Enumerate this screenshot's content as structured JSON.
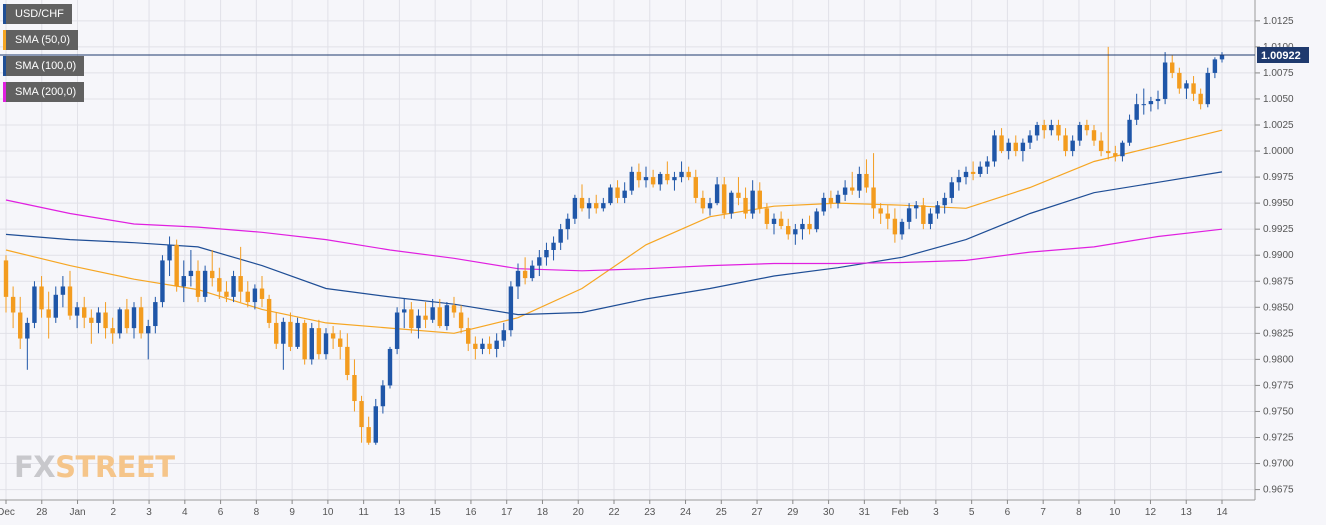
{
  "legend": [
    {
      "label": "USD/CHF",
      "color": "#1f4e96"
    },
    {
      "label": "SMA (50,0)",
      "color": "#f6a623"
    },
    {
      "label": "SMA (100,0)",
      "color": "#1f4e96"
    },
    {
      "label": "SMA (200,0)",
      "color": "#e020e0"
    }
  ],
  "logo": {
    "part1": "FX",
    "part2": "STREET"
  },
  "price_tag": "1.00922",
  "colors": {
    "up": "#1f56a8",
    "down": "#f39c1f",
    "sma50": "#f6a623",
    "sma100": "#1f4e96",
    "sma200": "#e020e0",
    "last_line": "#1f3a6e",
    "grid": "#e1e1e8"
  },
  "chart_data": {
    "type": "candlestick",
    "instrument": "USD/CHF",
    "x_tick_labels": [
      "Dec",
      "28",
      "Jan",
      "2",
      "3",
      "4",
      "6",
      "8",
      "9",
      "10",
      "11",
      "13",
      "15",
      "16",
      "17",
      "18",
      "20",
      "22",
      "23",
      "24",
      "25",
      "27",
      "29",
      "30",
      "31",
      "Feb",
      "3",
      "5",
      "6",
      "7",
      "8",
      "10",
      "12",
      "13",
      "14"
    ],
    "y_ticks": [
      "0.9675",
      "0.9700",
      "0.9725",
      "0.9750",
      "0.9775",
      "0.9800",
      "0.9825",
      "0.9850",
      "0.9875",
      "0.9900",
      "0.9925",
      "0.9950",
      "0.9975",
      "1.0000",
      "1.0025",
      "1.0050",
      "1.0075",
      "1.0100",
      "1.0125"
    ],
    "ylim": [
      0.9665,
      1.0145
    ],
    "last_price": 1.00922,
    "grid": true,
    "legend_position": "top-left",
    "candles": [
      [
        0.9895,
        0.99,
        0.9845,
        0.986
      ],
      [
        0.986,
        0.987,
        0.983,
        0.9845
      ],
      [
        0.9845,
        0.986,
        0.981,
        0.982
      ],
      [
        0.982,
        0.984,
        0.979,
        0.9835
      ],
      [
        0.9835,
        0.9875,
        0.983,
        0.987
      ],
      [
        0.987,
        0.988,
        0.984,
        0.9848
      ],
      [
        0.9848,
        0.9865,
        0.982,
        0.984
      ],
      [
        0.984,
        0.987,
        0.9835,
        0.9862
      ],
      [
        0.9862,
        0.988,
        0.985,
        0.987
      ],
      [
        0.987,
        0.9885,
        0.9838,
        0.9842
      ],
      [
        0.9842,
        0.9855,
        0.983,
        0.985
      ],
      [
        0.985,
        0.986,
        0.983,
        0.984
      ],
      [
        0.984,
        0.9848,
        0.9815,
        0.9835
      ],
      [
        0.9835,
        0.985,
        0.9825,
        0.9845
      ],
      [
        0.9845,
        0.9855,
        0.982,
        0.983
      ],
      [
        0.983,
        0.984,
        0.9815,
        0.9825
      ],
      [
        0.9825,
        0.985,
        0.982,
        0.9848
      ],
      [
        0.9848,
        0.9858,
        0.9825,
        0.983
      ],
      [
        0.983,
        0.9855,
        0.982,
        0.985
      ],
      [
        0.985,
        0.986,
        0.982,
        0.9825
      ],
      [
        0.9825,
        0.9838,
        0.98,
        0.9832
      ],
      [
        0.9832,
        0.986,
        0.9825,
        0.9855
      ],
      [
        0.9855,
        0.99,
        0.985,
        0.9895
      ],
      [
        0.9895,
        0.9918,
        0.988,
        0.991
      ],
      [
        0.991,
        0.9915,
        0.9865,
        0.987
      ],
      [
        0.987,
        0.9895,
        0.9855,
        0.988
      ],
      [
        0.988,
        0.9905,
        0.987,
        0.9885
      ],
      [
        0.9885,
        0.9895,
        0.9855,
        0.986
      ],
      [
        0.986,
        0.989,
        0.9855,
        0.9885
      ],
      [
        0.9885,
        0.9905,
        0.987,
        0.9878
      ],
      [
        0.9878,
        0.9888,
        0.9858,
        0.9865
      ],
      [
        0.9865,
        0.9875,
        0.9855,
        0.986
      ],
      [
        0.986,
        0.9885,
        0.9855,
        0.988
      ],
      [
        0.988,
        0.9908,
        0.9855,
        0.9865
      ],
      [
        0.9865,
        0.9875,
        0.985,
        0.9855
      ],
      [
        0.9855,
        0.9872,
        0.9848,
        0.9868
      ],
      [
        0.9868,
        0.988,
        0.985,
        0.9858
      ],
      [
        0.9858,
        0.9862,
        0.983,
        0.9835
      ],
      [
        0.9835,
        0.9845,
        0.981,
        0.9815
      ],
      [
        0.9815,
        0.984,
        0.979,
        0.9836
      ],
      [
        0.9836,
        0.9845,
        0.9808,
        0.9812
      ],
      [
        0.9812,
        0.984,
        0.981,
        0.9835
      ],
      [
        0.9835,
        0.9838,
        0.9795,
        0.98
      ],
      [
        0.98,
        0.9835,
        0.9795,
        0.983
      ],
      [
        0.983,
        0.9838,
        0.98,
        0.9805
      ],
      [
        0.9805,
        0.983,
        0.98,
        0.9825
      ],
      [
        0.9825,
        0.9832,
        0.981,
        0.982
      ],
      [
        0.982,
        0.9828,
        0.98,
        0.9812
      ],
      [
        0.9812,
        0.9825,
        0.978,
        0.9785
      ],
      [
        0.9785,
        0.98,
        0.975,
        0.976
      ],
      [
        0.976,
        0.9765,
        0.972,
        0.9735
      ],
      [
        0.9735,
        0.9745,
        0.9718,
        0.972
      ],
      [
        0.972,
        0.9762,
        0.9718,
        0.9755
      ],
      [
        0.9755,
        0.978,
        0.9748,
        0.9775
      ],
      [
        0.9775,
        0.9812,
        0.9772,
        0.981
      ],
      [
        0.981,
        0.985,
        0.9805,
        0.9845
      ],
      [
        0.9845,
        0.9858,
        0.983,
        0.9848
      ],
      [
        0.9848,
        0.9855,
        0.9825,
        0.983
      ],
      [
        0.983,
        0.9848,
        0.982,
        0.9842
      ],
      [
        0.9842,
        0.9855,
        0.983,
        0.9838
      ],
      [
        0.9838,
        0.9858,
        0.9835,
        0.985
      ],
      [
        0.985,
        0.9858,
        0.983,
        0.9832
      ],
      [
        0.9832,
        0.9855,
        0.9828,
        0.9852
      ],
      [
        0.9852,
        0.986,
        0.984,
        0.9845
      ],
      [
        0.9845,
        0.9852,
        0.9825,
        0.983
      ],
      [
        0.983,
        0.984,
        0.9808,
        0.9815
      ],
      [
        0.9815,
        0.9822,
        0.98,
        0.981
      ],
      [
        0.981,
        0.982,
        0.9805,
        0.9815
      ],
      [
        0.9815,
        0.9822,
        0.9805,
        0.981
      ],
      [
        0.981,
        0.9825,
        0.9802,
        0.9818
      ],
      [
        0.9818,
        0.9835,
        0.9812,
        0.9828
      ],
      [
        0.9828,
        0.9875,
        0.9822,
        0.987
      ],
      [
        0.987,
        0.9892,
        0.9858,
        0.9885
      ],
      [
        0.9885,
        0.9898,
        0.9872,
        0.9878
      ],
      [
        0.9878,
        0.9895,
        0.9875,
        0.989
      ],
      [
        0.989,
        0.9905,
        0.988,
        0.9898
      ],
      [
        0.9898,
        0.9912,
        0.989,
        0.9905
      ],
      [
        0.9905,
        0.9918,
        0.9895,
        0.9912
      ],
      [
        0.9912,
        0.993,
        0.9905,
        0.9925
      ],
      [
        0.9925,
        0.994,
        0.9915,
        0.9935
      ],
      [
        0.9935,
        0.9958,
        0.993,
        0.9955
      ],
      [
        0.9955,
        0.9968,
        0.9942,
        0.9945
      ],
      [
        0.9945,
        0.9955,
        0.9935,
        0.995
      ],
      [
        0.995,
        0.9958,
        0.994,
        0.9945
      ],
      [
        0.9945,
        0.9955,
        0.9942,
        0.995
      ],
      [
        0.995,
        0.9968,
        0.9948,
        0.9965
      ],
      [
        0.9965,
        0.9972,
        0.995,
        0.9955
      ],
      [
        0.9955,
        0.997,
        0.995,
        0.9962
      ],
      [
        0.9962,
        0.9985,
        0.9958,
        0.998
      ],
      [
        0.998,
        0.9988,
        0.9965,
        0.9972
      ],
      [
        0.9972,
        0.9985,
        0.9965,
        0.9975
      ],
      [
        0.9975,
        0.9982,
        0.9965,
        0.9968
      ],
      [
        0.9968,
        0.998,
        0.9962,
        0.9978
      ],
      [
        0.9978,
        0.999,
        0.9968,
        0.9972
      ],
      [
        0.9972,
        0.998,
        0.9962,
        0.9975
      ],
      [
        0.9975,
        0.999,
        0.997,
        0.998
      ],
      [
        0.998,
        0.9985,
        0.9972,
        0.9975
      ],
      [
        0.9975,
        0.9982,
        0.995,
        0.9955
      ],
      [
        0.9955,
        0.9962,
        0.994,
        0.9945
      ],
      [
        0.9945,
        0.9955,
        0.9938,
        0.995
      ],
      [
        0.995,
        0.9975,
        0.9948,
        0.9968
      ],
      [
        0.9968,
        0.9975,
        0.9935,
        0.994
      ],
      [
        0.994,
        0.9962,
        0.9935,
        0.996
      ],
      [
        0.996,
        0.9975,
        0.9948,
        0.9955
      ],
      [
        0.9955,
        0.9965,
        0.9935,
        0.994
      ],
      [
        0.994,
        0.9972,
        0.9935,
        0.9962
      ],
      [
        0.9962,
        0.997,
        0.994,
        0.9945
      ],
      [
        0.9945,
        0.995,
        0.9925,
        0.993
      ],
      [
        0.993,
        0.994,
        0.992,
        0.9935
      ],
      [
        0.9935,
        0.9942,
        0.9925,
        0.9928
      ],
      [
        0.9928,
        0.9935,
        0.9915,
        0.992
      ],
      [
        0.992,
        0.993,
        0.991,
        0.9925
      ],
      [
        0.9925,
        0.9935,
        0.9915,
        0.993
      ],
      [
        0.993,
        0.9938,
        0.992,
        0.9925
      ],
      [
        0.9925,
        0.9945,
        0.9922,
        0.9942
      ],
      [
        0.9942,
        0.996,
        0.9938,
        0.9955
      ],
      [
        0.9955,
        0.9962,
        0.9945,
        0.995
      ],
      [
        0.995,
        0.9962,
        0.9945,
        0.9958
      ],
      [
        0.9958,
        0.9972,
        0.9952,
        0.9965
      ],
      [
        0.9965,
        0.998,
        0.9958,
        0.9962
      ],
      [
        0.9962,
        0.9985,
        0.9955,
        0.9978
      ],
      [
        0.9978,
        0.9992,
        0.996,
        0.9965
      ],
      [
        0.9965,
        0.9998,
        0.9935,
        0.9945
      ],
      [
        0.9945,
        0.995,
        0.993,
        0.994
      ],
      [
        0.994,
        0.9948,
        0.9925,
        0.9935
      ],
      [
        0.9935,
        0.9945,
        0.9912,
        0.992
      ],
      [
        0.992,
        0.9935,
        0.9915,
        0.9932
      ],
      [
        0.9932,
        0.995,
        0.9925,
        0.9945
      ],
      [
        0.9945,
        0.9952,
        0.9935,
        0.9948
      ],
      [
        0.9948,
        0.9955,
        0.9925,
        0.993
      ],
      [
        0.993,
        0.9945,
        0.9925,
        0.994
      ],
      [
        0.994,
        0.9952,
        0.9935,
        0.9948
      ],
      [
        0.9948,
        0.996,
        0.994,
        0.9955
      ],
      [
        0.9955,
        0.9975,
        0.995,
        0.997
      ],
      [
        0.997,
        0.9982,
        0.9962,
        0.9975
      ],
      [
        0.9975,
        0.9985,
        0.9968,
        0.998
      ],
      [
        0.998,
        0.999,
        0.9972,
        0.9978
      ],
      [
        0.9978,
        0.999,
        0.9975,
        0.9985
      ],
      [
        0.9985,
        0.9995,
        0.9978,
        0.999
      ],
      [
        0.999,
        1.002,
        0.9985,
        1.0015
      ],
      [
        1.0015,
        1.0022,
        0.9998,
        1.0
      ],
      [
        1.0,
        1.0012,
        0.9992,
        1.0008
      ],
      [
        1.0008,
        1.0015,
        0.9995,
        1.0
      ],
      [
        1.0,
        1.0012,
        0.999,
        1.0008
      ],
      [
        1.0008,
        1.002,
        1.0002,
        1.0015
      ],
      [
        1.0015,
        1.0028,
        1.001,
        1.0025
      ],
      [
        1.0025,
        1.003,
        1.0012,
        1.002
      ],
      [
        1.002,
        1.003,
        1.0015,
        1.0025
      ],
      [
        1.0025,
        1.003,
        1.001,
        1.0015
      ],
      [
        1.0015,
        1.0022,
        0.9995,
        1.0
      ],
      [
        1.0,
        1.0015,
        0.9995,
        1.001
      ],
      [
        1.001,
        1.0028,
        1.0005,
        1.0025
      ],
      [
        1.0025,
        1.003,
        1.0015,
        1.002
      ],
      [
        1.002,
        1.0025,
        1.0005,
        1.001
      ],
      [
        1.001,
        1.0018,
        0.9995,
        1.0
      ],
      [
        1.0,
        1.01,
        0.9992,
        0.9998
      ],
      [
        0.9998,
        1.0005,
        0.999,
        0.9995
      ],
      [
        0.9995,
        1.001,
        0.999,
        1.0008
      ],
      [
        1.0008,
        1.0035,
        1.0005,
        1.003
      ],
      [
        1.003,
        1.0055,
        1.0025,
        1.0045
      ],
      [
        1.0045,
        1.006,
        1.0035,
        1.0045
      ],
      [
        1.0045,
        1.0052,
        1.0038,
        1.0048
      ],
      [
        1.0048,
        1.0058,
        1.004,
        1.005
      ],
      [
        1.005,
        1.0095,
        1.0045,
        1.0085
      ],
      [
        1.0085,
        1.0092,
        1.007,
        1.0075
      ],
      [
        1.0075,
        1.008,
        1.0055,
        1.006
      ],
      [
        1.006,
        1.0068,
        1.005,
        1.0065
      ],
      [
        1.0065,
        1.0072,
        1.0048,
        1.0055
      ],
      [
        1.0055,
        1.006,
        1.004,
        1.0045
      ],
      [
        1.0045,
        1.008,
        1.0042,
        1.0075
      ],
      [
        1.0075,
        1.009,
        1.007,
        1.0088
      ],
      [
        1.0088,
        1.0095,
        1.0085,
        1.0092
      ]
    ],
    "series": [
      {
        "name": "SMA (50,0)",
        "color": "#f6a623",
        "values": [
          0.9905,
          0.989,
          0.9877,
          0.9867,
          0.9848,
          0.9835,
          0.983,
          0.9825,
          0.984,
          0.9868,
          0.991,
          0.9937,
          0.9947,
          0.995,
          0.9948,
          0.9945,
          0.9965,
          0.999,
          1.0005,
          1.002
        ]
      },
      {
        "name": "SMA (100,0)",
        "color": "#1f4e96",
        "values": [
          0.992,
          0.9915,
          0.9912,
          0.9908,
          0.989,
          0.9868,
          0.986,
          0.9853,
          0.9843,
          0.9845,
          0.9858,
          0.9868,
          0.988,
          0.9888,
          0.9898,
          0.9915,
          0.994,
          0.996,
          0.997,
          0.998
        ]
      },
      {
        "name": "SMA (200,0)",
        "color": "#e020e0",
        "values": [
          0.9953,
          0.994,
          0.993,
          0.9927,
          0.9922,
          0.9915,
          0.9905,
          0.9897,
          0.9887,
          0.9885,
          0.9887,
          0.989,
          0.9892,
          0.9892,
          0.9893,
          0.9895,
          0.9903,
          0.9908,
          0.9918,
          0.9925
        ]
      }
    ]
  }
}
